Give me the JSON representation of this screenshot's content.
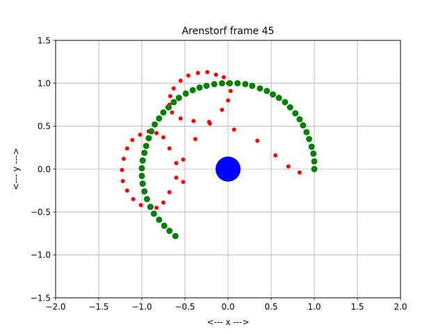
{
  "chart_data": {
    "type": "scatter",
    "title": "Arenstorf frame 45",
    "xlabel": "<---  x  --->",
    "ylabel": "<---  y  --->",
    "xlim": [
      -2.0,
      2.0
    ],
    "ylim": [
      -1.5,
      1.5
    ],
    "xticks": [
      -2.0,
      -1.5,
      -1.0,
      -0.5,
      0.0,
      0.5,
      1.0,
      1.5,
      2.0
    ],
    "yticks": [
      -1.5,
      -1.0,
      -0.5,
      0.0,
      0.5,
      1.0,
      1.5
    ],
    "xtick_labels": [
      "−2.0",
      "−1.5",
      "−1.0",
      "−0.5",
      "0.0",
      "0.5",
      "1.0",
      "1.5",
      "2.0"
    ],
    "ytick_labels": [
      "−1.5",
      "−1.0",
      "−0.5",
      "0.0",
      "0.5",
      "1.0",
      "1.5"
    ],
    "grid": true,
    "series": [
      {
        "color": "#ff0000",
        "points": [
          [
            1.0,
            0.0
          ],
          [
            0.83,
            -0.04
          ],
          [
            0.7,
            0.03
          ],
          [
            0.55,
            0.16
          ],
          [
            0.34,
            0.33
          ],
          [
            0.07,
            0.46
          ],
          [
            -0.21,
            0.53
          ],
          [
            -0.22,
            0.55
          ],
          [
            -0.07,
            0.69
          ],
          [
            0.0,
            0.8
          ],
          [
            0.03,
            0.91
          ],
          [
            0.0,
            1.0
          ],
          [
            -0.05,
            1.07
          ],
          [
            -0.14,
            1.1
          ],
          [
            -0.24,
            1.13
          ],
          [
            -0.35,
            1.12
          ],
          [
            -0.46,
            1.09
          ],
          [
            -0.55,
            1.03
          ],
          [
            -0.63,
            0.94
          ],
          [
            -0.67,
            0.85
          ],
          [
            -0.68,
            0.75
          ],
          [
            -0.65,
            0.66
          ],
          [
            -0.55,
            0.59
          ],
          [
            -0.4,
            0.56
          ],
          [
            -0.38,
            0.35
          ],
          [
            -0.68,
            0.24
          ],
          [
            -0.75,
            0.37
          ],
          [
            -0.83,
            0.42
          ],
          [
            -0.92,
            0.44
          ],
          [
            -1.02,
            0.4
          ],
          [
            -1.11,
            0.34
          ],
          [
            -1.17,
            0.24
          ],
          [
            -1.21,
            0.12
          ],
          [
            -1.23,
            -0.01
          ],
          [
            -1.22,
            -0.14
          ],
          [
            -1.17,
            -0.25
          ],
          [
            -1.1,
            -0.35
          ],
          [
            -1.01,
            -0.42
          ],
          [
            -0.91,
            -0.45
          ],
          [
            -0.83,
            -0.45
          ],
          [
            -0.75,
            -0.39
          ],
          [
            -0.68,
            -0.27
          ],
          [
            -0.52,
            -0.15
          ],
          [
            -0.6,
            -0.1
          ],
          [
            -0.6,
            0.07
          ],
          [
            -0.52,
            0.11
          ]
        ],
        "marker_size": 6
      },
      {
        "color": "#008000",
        "points": [
          [
            1.0,
            0.0
          ],
          [
            1.0,
            0.09
          ],
          [
            0.99,
            0.18
          ],
          [
            0.97,
            0.26
          ],
          [
            0.94,
            0.35
          ],
          [
            0.91,
            0.43
          ],
          [
            0.87,
            0.51
          ],
          [
            0.83,
            0.58
          ],
          [
            0.78,
            0.65
          ],
          [
            0.72,
            0.72
          ],
          [
            0.66,
            0.78
          ],
          [
            0.59,
            0.83
          ],
          [
            0.52,
            0.87
          ],
          [
            0.45,
            0.91
          ],
          [
            0.37,
            0.94
          ],
          [
            0.28,
            0.97
          ],
          [
            0.2,
            0.99
          ],
          [
            0.11,
            1.0
          ],
          [
            0.02,
            1.0
          ],
          [
            -0.07,
            1.0
          ],
          [
            -0.16,
            0.99
          ],
          [
            -0.25,
            0.97
          ],
          [
            -0.33,
            0.95
          ],
          [
            -0.41,
            0.92
          ],
          [
            -0.49,
            0.88
          ],
          [
            -0.57,
            0.83
          ],
          [
            -0.63,
            0.78
          ],
          [
            -0.69,
            0.72
          ],
          [
            -0.75,
            0.66
          ],
          [
            -0.8,
            0.59
          ],
          [
            -0.85,
            0.52
          ],
          [
            -0.89,
            0.44
          ],
          [
            -0.92,
            0.36
          ],
          [
            -0.95,
            0.27
          ],
          [
            -0.97,
            0.19
          ],
          [
            -0.99,
            0.1
          ],
          [
            -1.0,
            0.01
          ],
          [
            -1.0,
            -0.08
          ],
          [
            -0.99,
            -0.17
          ],
          [
            -0.97,
            -0.26
          ],
          [
            -0.94,
            -0.35
          ],
          [
            -0.9,
            -0.44
          ],
          [
            -0.86,
            -0.52
          ],
          [
            -0.8,
            -0.59
          ],
          [
            -0.74,
            -0.66
          ],
          [
            -0.68,
            -0.72
          ],
          [
            -0.61,
            -0.78
          ]
        ],
        "marker_size": 9
      },
      {
        "color": "#0000ff",
        "points": [
          [
            0.0,
            0.0
          ]
        ],
        "marker_size": 36
      }
    ]
  }
}
